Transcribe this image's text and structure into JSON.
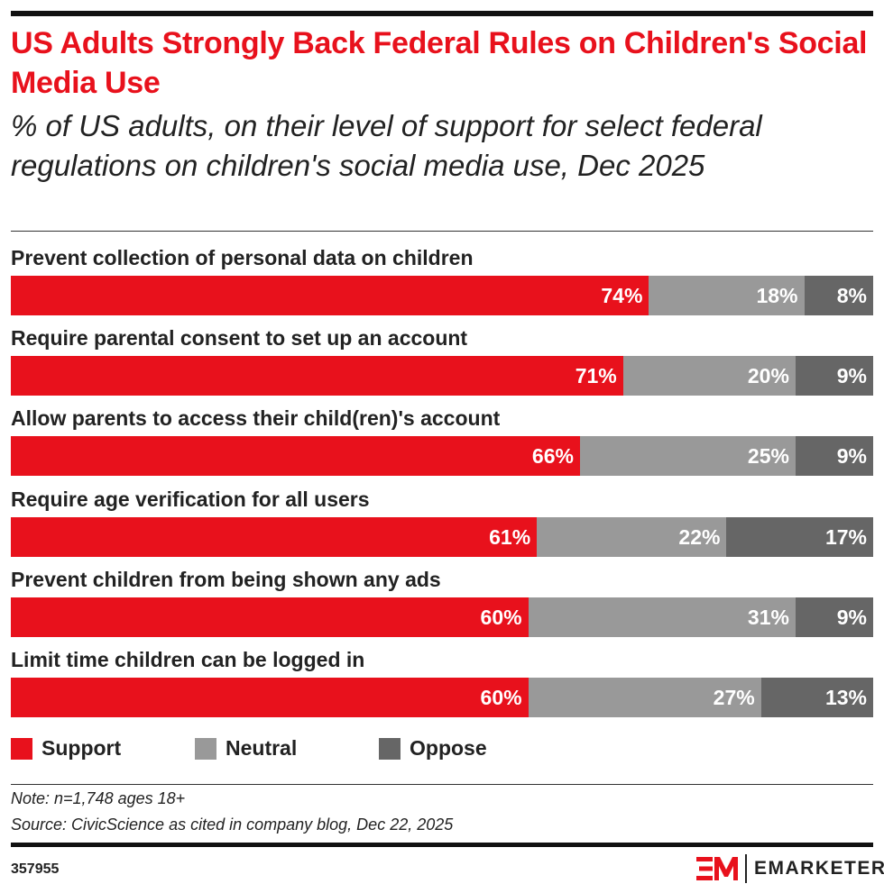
{
  "title": "US Adults Strongly Back Federal Rules on Children's Social Media Use",
  "subtitle": "% of US adults, on their level of support for select federal regulations on children's social media use, Dec 2025",
  "chart_data": {
    "type": "bar",
    "stacked": true,
    "orientation": "horizontal",
    "categories": [
      "Prevent collection of personal data on children",
      "Require parental consent to set up an account",
      "Allow parents to access their child(ren)'s account",
      "Require age verification for all users",
      "Prevent children from being shown any ads",
      "Limit time children can be logged in"
    ],
    "series": [
      {
        "name": "Support",
        "color": "#e8111c",
        "values": [
          74,
          71,
          66,
          61,
          60,
          60
        ]
      },
      {
        "name": "Neutral",
        "color": "#999999",
        "values": [
          18,
          20,
          25,
          22,
          31,
          27
        ]
      },
      {
        "name": "Oppose",
        "color": "#666666",
        "values": [
          8,
          9,
          9,
          17,
          9,
          13
        ]
      }
    ],
    "value_suffix": "%",
    "legend_position": "bottom-left",
    "grid": false
  },
  "note": "Note: n=1,748 ages 18+",
  "source": "Source: CivicScience as cited in company blog, Dec 22, 2025",
  "chart_id": "357955",
  "brand": "EMARKETER"
}
